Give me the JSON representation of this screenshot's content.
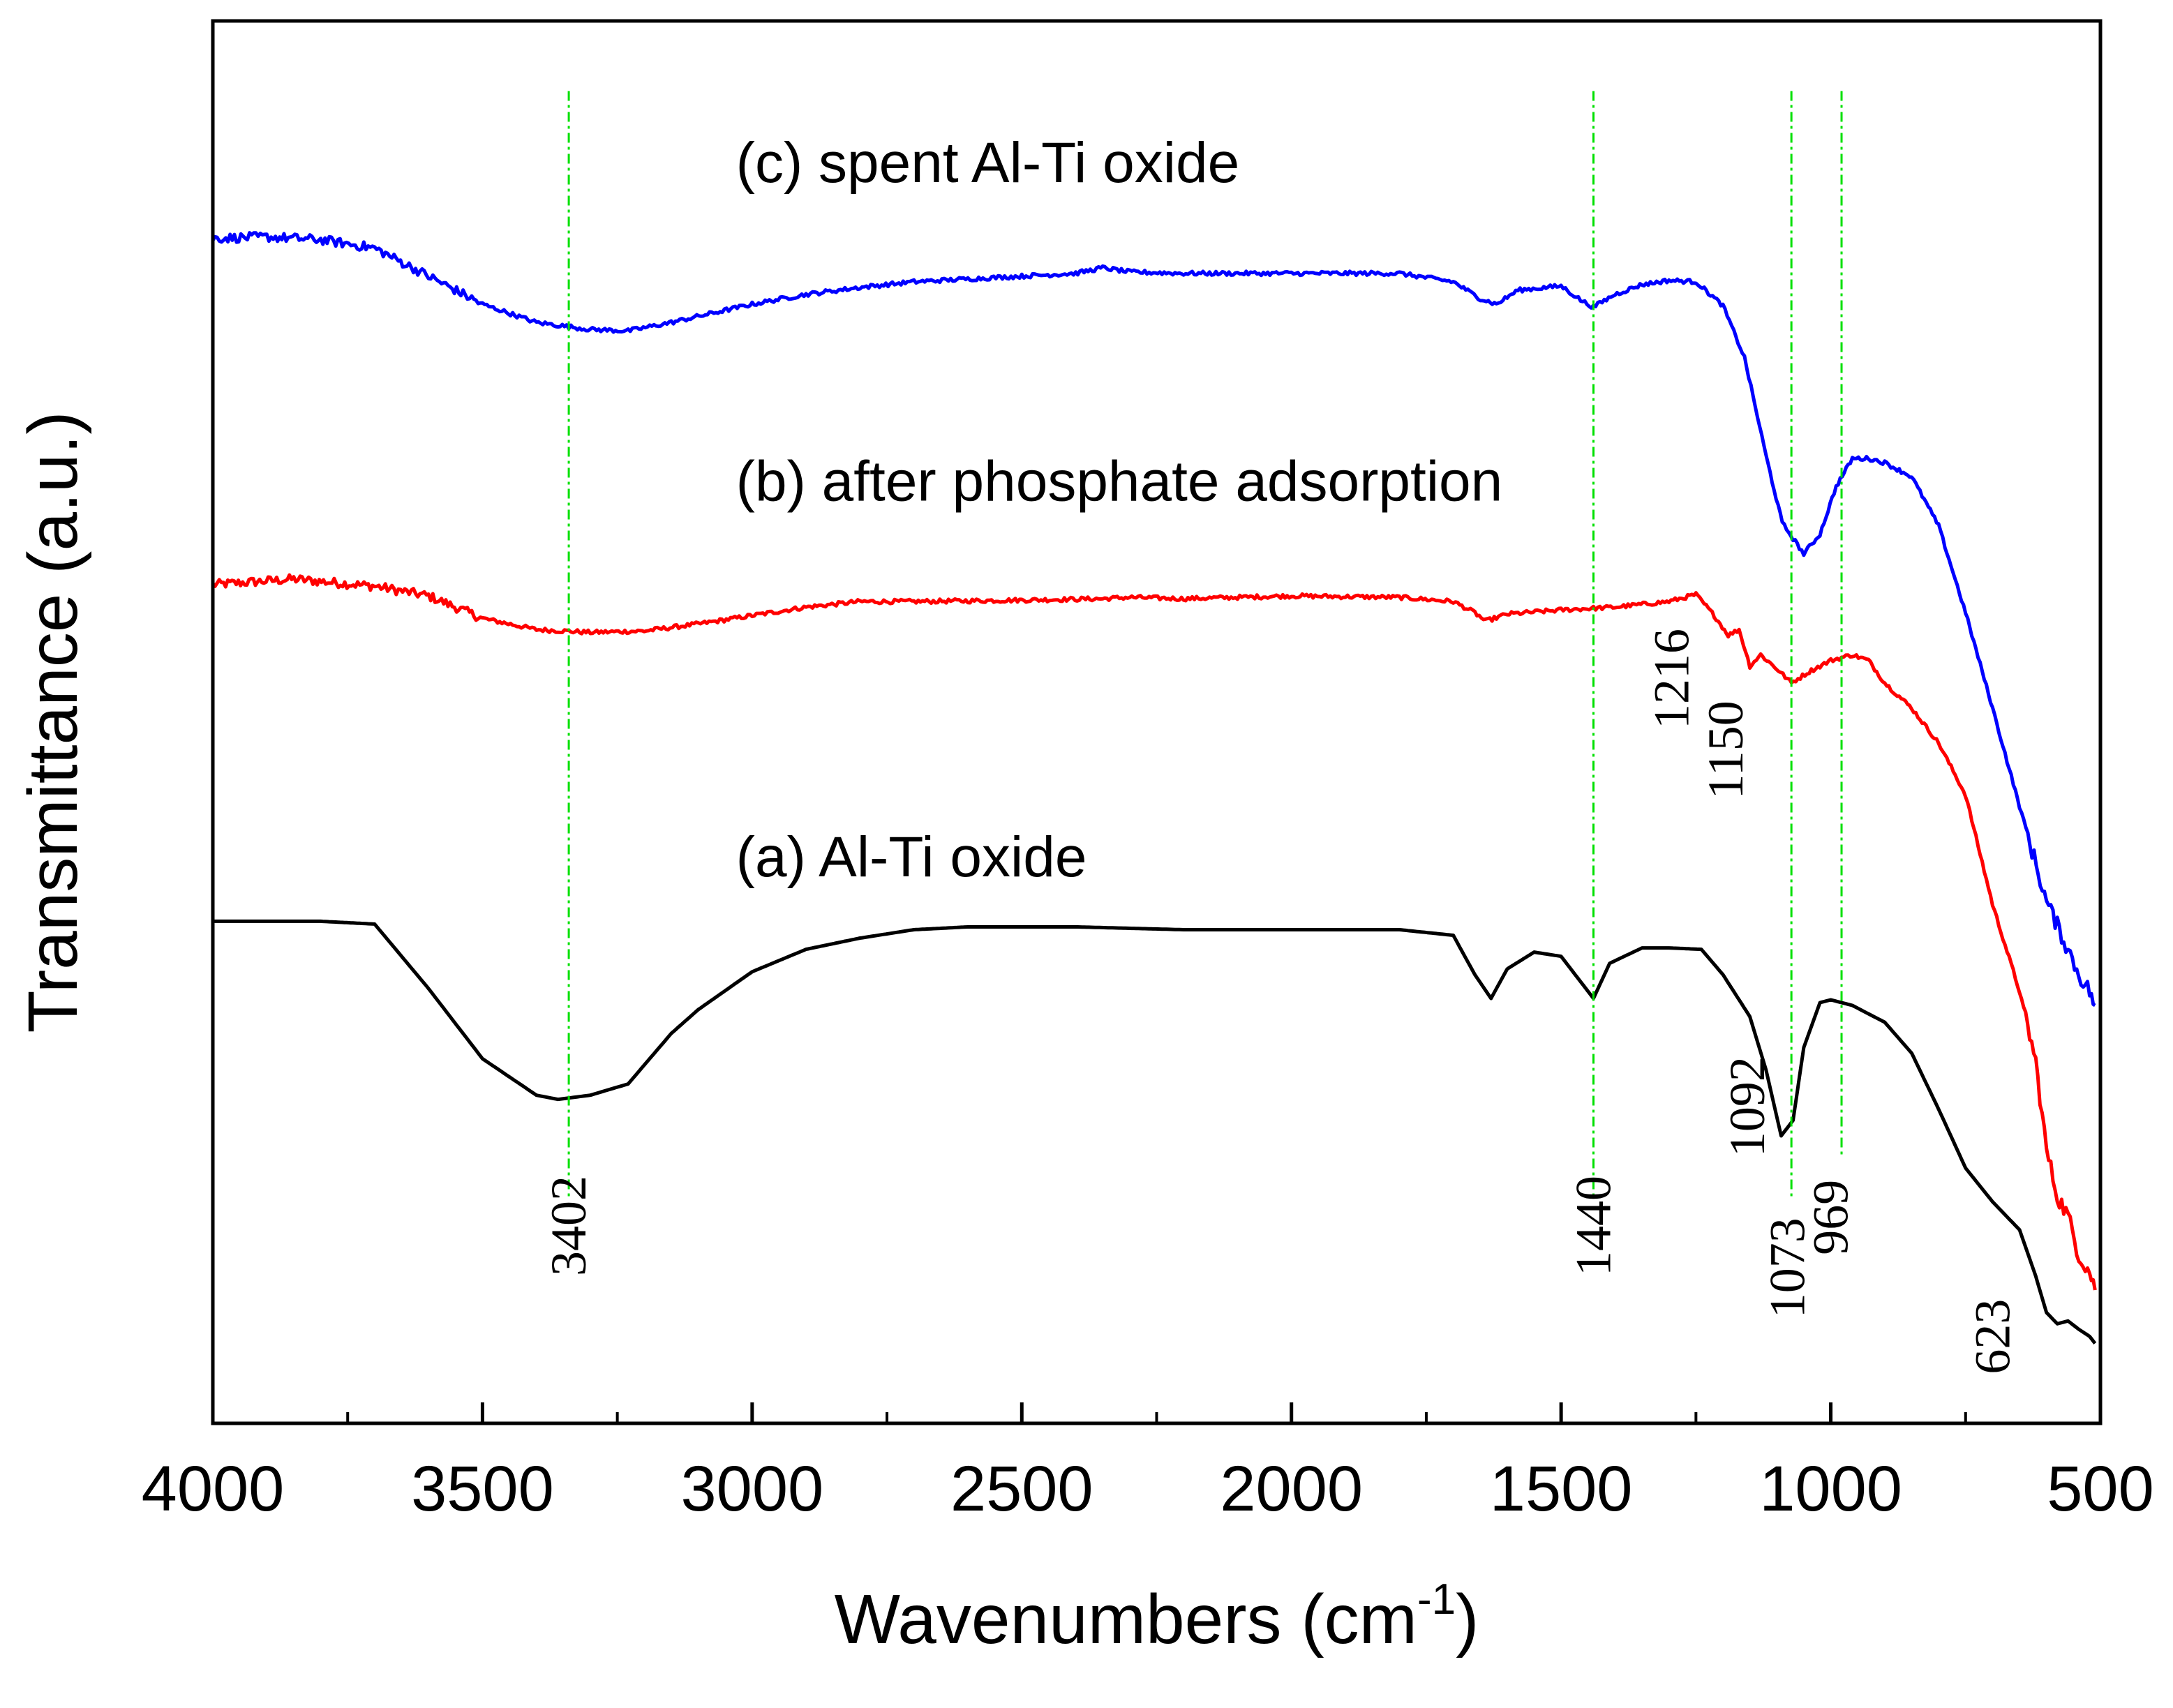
{
  "chart_data": {
    "type": "line",
    "title": "",
    "xlabel": "Wavenumbers (cm",
    "xlabel_superscript": "-1",
    "xlabel_close": ")",
    "ylabel": "Transmittance (a.u.)",
    "xlim": [
      4000,
      500
    ],
    "ylim": [
      0,
      10
    ],
    "x_ticks": [
      4000,
      3500,
      3000,
      2500,
      2000,
      1500,
      1000,
      500
    ],
    "x_tick_labels": [
      "4000",
      "3500",
      "3000",
      "2500",
      "2000",
      "1500",
      "1000",
      "500"
    ],
    "y_ticks_visible": false,
    "grid": false,
    "series": [
      {
        "name": "(a) Al-Ti oxide",
        "color": "#000000",
        "noise": 0.0,
        "points": [
          [
            4000,
            3.58
          ],
          [
            3800,
            3.58
          ],
          [
            3700,
            3.56
          ],
          [
            3600,
            3.1
          ],
          [
            3500,
            2.6
          ],
          [
            3400,
            2.34
          ],
          [
            3360,
            2.31
          ],
          [
            3300,
            2.34
          ],
          [
            3230,
            2.42
          ],
          [
            3150,
            2.78
          ],
          [
            3100,
            2.95
          ],
          [
            3000,
            3.22
          ],
          [
            2900,
            3.38
          ],
          [
            2800,
            3.46
          ],
          [
            2700,
            3.52
          ],
          [
            2600,
            3.54
          ],
          [
            2500,
            3.54
          ],
          [
            2400,
            3.54
          ],
          [
            2300,
            3.53
          ],
          [
            2200,
            3.52
          ],
          [
            2000,
            3.52
          ],
          [
            1800,
            3.52
          ],
          [
            1700,
            3.48
          ],
          [
            1660,
            3.2
          ],
          [
            1630,
            3.03
          ],
          [
            1600,
            3.24
          ],
          [
            1550,
            3.36
          ],
          [
            1500,
            3.33
          ],
          [
            1470,
            3.18
          ],
          [
            1440,
            3.03
          ],
          [
            1410,
            3.28
          ],
          [
            1350,
            3.39
          ],
          [
            1300,
            3.39
          ],
          [
            1240,
            3.38
          ],
          [
            1200,
            3.2
          ],
          [
            1150,
            2.9
          ],
          [
            1120,
            2.52
          ],
          [
            1092,
            2.05
          ],
          [
            1070,
            2.16
          ],
          [
            1050,
            2.68
          ],
          [
            1020,
            3.0
          ],
          [
            1000,
            3.02
          ],
          [
            960,
            2.98
          ],
          [
            900,
            2.86
          ],
          [
            850,
            2.64
          ],
          [
            800,
            2.24
          ],
          [
            750,
            1.82
          ],
          [
            700,
            1.58
          ],
          [
            650,
            1.38
          ],
          [
            620,
            1.05
          ],
          [
            600,
            0.79
          ],
          [
            580,
            0.71
          ],
          [
            560,
            0.73
          ],
          [
            540,
            0.67
          ],
          [
            520,
            0.62
          ],
          [
            510,
            0.57
          ]
        ]
      },
      {
        "name": "(b) after phosphate adsorption",
        "color": "#ff0000",
        "noise": 0.03,
        "points": [
          [
            4000,
            5.98
          ],
          [
            3850,
            6.02
          ],
          [
            3700,
            5.97
          ],
          [
            3600,
            5.9
          ],
          [
            3500,
            5.74
          ],
          [
            3400,
            5.66
          ],
          [
            3300,
            5.64
          ],
          [
            3200,
            5.65
          ],
          [
            3100,
            5.7
          ],
          [
            3000,
            5.76
          ],
          [
            2900,
            5.82
          ],
          [
            2800,
            5.86
          ],
          [
            2700,
            5.86
          ],
          [
            2500,
            5.87
          ],
          [
            2350,
            5.88
          ],
          [
            2300,
            5.89
          ],
          [
            2200,
            5.88
          ],
          [
            2000,
            5.9
          ],
          [
            1800,
            5.89
          ],
          [
            1700,
            5.86
          ],
          [
            1660,
            5.78
          ],
          [
            1640,
            5.72
          ],
          [
            1600,
            5.77
          ],
          [
            1500,
            5.8
          ],
          [
            1400,
            5.82
          ],
          [
            1300,
            5.86
          ],
          [
            1250,
            5.91
          ],
          [
            1216,
            5.76
          ],
          [
            1190,
            5.62
          ],
          [
            1170,
            5.66
          ],
          [
            1150,
            5.4
          ],
          [
            1130,
            5.48
          ],
          [
            1100,
            5.38
          ],
          [
            1073,
            5.28
          ],
          [
            1040,
            5.36
          ],
          [
            1000,
            5.44
          ],
          [
            960,
            5.48
          ],
          [
            930,
            5.44
          ],
          [
            900,
            5.28
          ],
          [
            850,
            5.1
          ],
          [
            800,
            4.85
          ],
          [
            750,
            4.48
          ],
          [
            700,
            3.7
          ],
          [
            650,
            3.08
          ],
          [
            620,
            2.58
          ],
          [
            600,
            1.95
          ],
          [
            580,
            1.62
          ],
          [
            560,
            1.48
          ],
          [
            540,
            1.2
          ],
          [
            520,
            1.08
          ],
          [
            510,
            0.95
          ]
        ]
      },
      {
        "name": "(c) spent Al-Ti oxide",
        "color": "#0000ff",
        "noise": 0.03,
        "points": [
          [
            4000,
            8.45
          ],
          [
            3900,
            8.46
          ],
          [
            3800,
            8.44
          ],
          [
            3700,
            8.38
          ],
          [
            3600,
            8.18
          ],
          [
            3500,
            7.98
          ],
          [
            3400,
            7.85
          ],
          [
            3300,
            7.8
          ],
          [
            3230,
            7.79
          ],
          [
            3150,
            7.85
          ],
          [
            3000,
            7.98
          ],
          [
            2900,
            8.05
          ],
          [
            2800,
            8.1
          ],
          [
            2700,
            8.14
          ],
          [
            2600,
            8.16
          ],
          [
            2500,
            8.18
          ],
          [
            2400,
            8.2
          ],
          [
            2350,
            8.24
          ],
          [
            2300,
            8.21
          ],
          [
            2200,
            8.2
          ],
          [
            2000,
            8.2
          ],
          [
            1800,
            8.2
          ],
          [
            1700,
            8.14
          ],
          [
            1650,
            8.02
          ],
          [
            1620,
            7.98
          ],
          [
            1580,
            8.08
          ],
          [
            1500,
            8.11
          ],
          [
            1460,
            8.0
          ],
          [
            1440,
            7.96
          ],
          [
            1400,
            8.05
          ],
          [
            1350,
            8.12
          ],
          [
            1300,
            8.15
          ],
          [
            1250,
            8.14
          ],
          [
            1200,
            7.97
          ],
          [
            1160,
            7.6
          ],
          [
            1120,
            6.9
          ],
          [
            1090,
            6.42
          ],
          [
            1050,
            6.2
          ],
          [
            1020,
            6.34
          ],
          [
            990,
            6.68
          ],
          [
            960,
            6.88
          ],
          [
            930,
            6.88
          ],
          [
            900,
            6.85
          ],
          [
            850,
            6.75
          ],
          [
            800,
            6.4
          ],
          [
            750,
            5.78
          ],
          [
            700,
            5.1
          ],
          [
            650,
            4.4
          ],
          [
            600,
            3.72
          ],
          [
            560,
            3.38
          ],
          [
            540,
            3.2
          ],
          [
            520,
            3.08
          ],
          [
            510,
            2.98
          ]
        ]
      }
    ],
    "series_labels": [
      {
        "text": "(c) spent Al-Ti oxide",
        "x": 3030,
        "y": 8.85
      },
      {
        "text": "(b) after phosphate adsorption",
        "x": 3030,
        "y": 6.58
      },
      {
        "text": "(a) Al-Ti oxide",
        "x": 3030,
        "y": 3.9
      }
    ],
    "reference_lines": [
      {
        "x": 3340,
        "y_top": 9.5,
        "y_bottom": 1.6
      },
      {
        "x": 1440,
        "y_top": 9.5,
        "y_bottom": 1.6
      },
      {
        "x": 1073,
        "y_top": 9.5,
        "y_bottom": 1.6
      },
      {
        "x": 980,
        "y_top": 9.5,
        "y_bottom": 1.9
      }
    ],
    "reference_line_color": "#00e000",
    "peak_labels": [
      {
        "text": "3402",
        "x": 3340,
        "y": 1.05
      },
      {
        "text": "1440",
        "x": 1440,
        "y": 1.05
      },
      {
        "text": "1216",
        "x": 1295,
        "y": 4.95
      },
      {
        "text": "1150",
        "x": 1195,
        "y": 4.45
      },
      {
        "text": "1092",
        "x": 1155,
        "y": 1.9
      },
      {
        "text": "1073",
        "x": 1080,
        "y": 0.75
      },
      {
        "text": "969",
        "x": 1000,
        "y": 1.2
      },
      {
        "text": "623",
        "x": 700,
        "y": 0.35
      }
    ]
  }
}
